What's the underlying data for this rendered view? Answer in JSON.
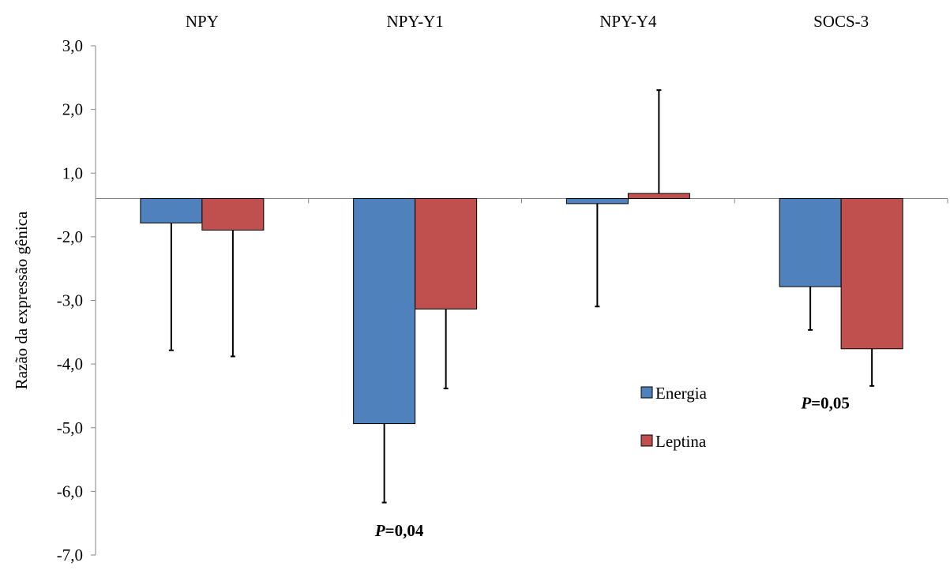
{
  "chart_data": {
    "type": "bar",
    "ylabel": "Razão da expressão  gênica",
    "ylim": [
      -7.0,
      3.0
    ],
    "yticks": [
      "3,0",
      "2,0",
      "1,0",
      "-2,0",
      "-3,0",
      "-4,0",
      "-5,0",
      "-6,0",
      "-7,0"
    ],
    "categories": [
      "NPY",
      "NPY-Y1",
      "NPY-Y4",
      "SOCS-3"
    ],
    "series": [
      {
        "name": "Energia",
        "color": "#4F81BD",
        "values": [
          -0.48,
          -4.42,
          -0.1,
          -1.73
        ],
        "error_low": [
          -2.98,
          -5.97,
          -2.12,
          -2.58
        ]
      },
      {
        "name": "Leptina",
        "color": "#C0504D",
        "values": [
          -0.62,
          -2.17,
          0.1,
          -2.95
        ],
        "error_high": [
          -3.1,
          -3.73,
          2.13,
          -3.68
        ]
      }
    ],
    "annotations": [
      {
        "italic": "P",
        "text": "=0,04",
        "category": "NPY-Y1",
        "y": -6.5
      },
      {
        "italic": "P",
        "text": "=0,05",
        "category": "SOCS-3",
        "y": -4.0
      }
    ],
    "legend_position": "center-right"
  }
}
